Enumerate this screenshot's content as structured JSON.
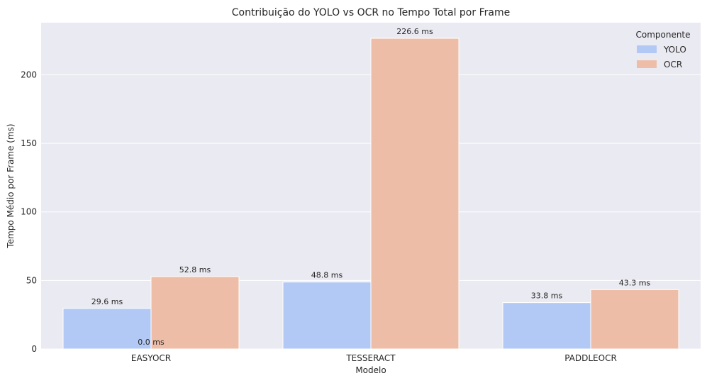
{
  "chart_data": {
    "type": "bar",
    "title": "Contribuição do YOLO vs OCR no Tempo Total por Frame",
    "xlabel": "Modelo",
    "ylabel": "Tempo Médio por Frame (ms)",
    "categories": [
      "EASYOCR",
      "TESSERACT",
      "PADDLEOCR"
    ],
    "series": [
      {
        "name": "YOLO",
        "values": [
          29.6,
          48.8,
          33.8
        ],
        "color": "#b3c9f5"
      },
      {
        "name": "OCR",
        "values": [
          52.8,
          226.6,
          43.3
        ],
        "color": "#edbda7"
      }
    ],
    "data_labels": {
      "YOLO": [
        "29.6 ms",
        "48.8 ms",
        "33.8 ms"
      ],
      "OCR": [
        "52.8 ms",
        "226.6 ms",
        "43.3 ms"
      ]
    },
    "extra_label": {
      "text": "0.0 ms",
      "category": "EASYOCR",
      "value": 0
    },
    "ylim": [
      0,
      238
    ],
    "yticks": [
      0,
      50,
      100,
      150,
      200
    ],
    "grid": true,
    "legend": {
      "title": "Componente",
      "placement": "top-right"
    },
    "colors": {
      "plot_bg": "#eaeaf2",
      "grid": "#ffffff",
      "text": "#262626"
    }
  }
}
